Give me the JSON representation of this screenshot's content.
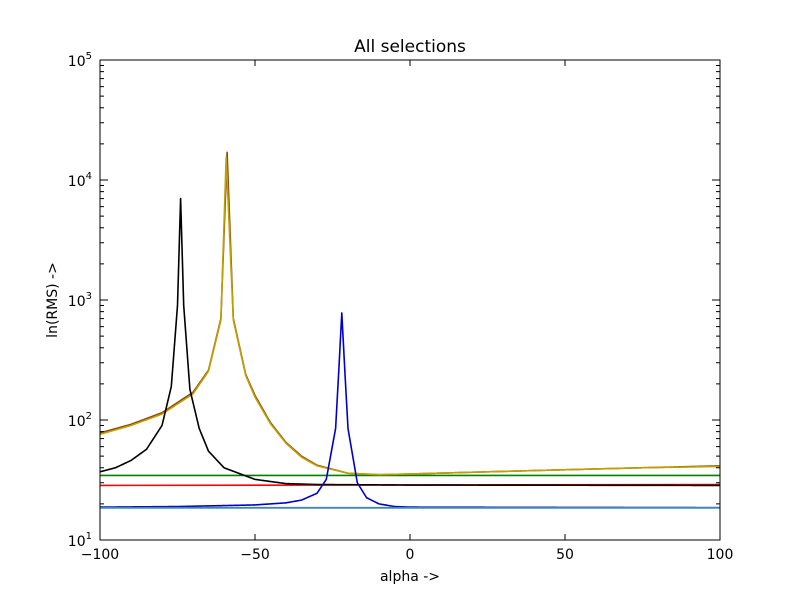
{
  "chart_data": {
    "type": "line",
    "title": "All selections",
    "xlabel": "alpha ->",
    "ylabel": "ln(RMS) ->",
    "xlim": [
      -100,
      100
    ],
    "ylim": [
      10,
      100000
    ],
    "yscale": "log",
    "grid": false,
    "legend": "none",
    "x_ticks": [
      -100,
      -50,
      0,
      50,
      100
    ],
    "x_tick_labels": [
      "−100",
      "−50",
      "0",
      "50",
      "100"
    ],
    "y_ticks": [
      {
        "value": 10,
        "base": "10",
        "exp": "1"
      },
      {
        "value": 100,
        "base": "10",
        "exp": "2"
      },
      {
        "value": 1000,
        "base": "10",
        "exp": "3"
      },
      {
        "value": 10000,
        "base": "10",
        "exp": "4"
      },
      {
        "value": 100000,
        "base": "10",
        "exp": "5"
      }
    ],
    "series": [
      {
        "color": "#20b2aa",
        "kind": "flat",
        "x": [
          -100,
          100
        ],
        "y": [
          18.5,
          18.5
        ]
      },
      {
        "color": "#008000",
        "kind": "flat",
        "x": [
          -100,
          100
        ],
        "y": [
          34.5,
          34.5
        ]
      },
      {
        "color": "#ff0000",
        "kind": "flat",
        "x": [
          -100,
          100
        ],
        "y": [
          28.5,
          29
        ]
      },
      {
        "color": "#8b4513",
        "kind": "peak",
        "center": -59,
        "peak_y": 17000,
        "left_end_y": 78,
        "right_end_y": 41.5,
        "base_y": 30,
        "x": [
          -100,
          -90,
          -80,
          -70,
          -65,
          -61,
          -59,
          -57,
          -53,
          -50,
          -45,
          -40,
          -35,
          -30,
          -20,
          -10,
          0,
          25,
          50,
          75,
          100
        ],
        "y": [
          78,
          92,
          115,
          170,
          260,
          700,
          17000,
          700,
          240,
          160,
          95,
          65,
          50,
          42,
          36,
          35,
          35.5,
          37,
          38.5,
          40,
          41.5
        ]
      },
      {
        "color": "#c0a000",
        "kind": "peak",
        "center": -59.3,
        "peak_y": 15500,
        "left_end_y": 76,
        "right_end_y": 41,
        "base_y": 30,
        "x": [
          -100,
          -90,
          -80,
          -70,
          -65,
          -61,
          -59.3,
          -57,
          -53,
          -50,
          -45,
          -40,
          -35,
          -30,
          -20,
          -10,
          0,
          25,
          50,
          75,
          100
        ],
        "y": [
          76,
          90,
          112,
          165,
          255,
          680,
          15500,
          680,
          235,
          155,
          93,
          64,
          49,
          41.5,
          36,
          35,
          35.5,
          37,
          38.5,
          40,
          41
        ]
      },
      {
        "color": "#000000",
        "kind": "peak",
        "center": -74,
        "peak_y": 7000,
        "left_end_y": 37,
        "right_end_y": 28.5,
        "base_y": 28.5,
        "x": [
          -100,
          -95,
          -90,
          -85,
          -80,
          -77,
          -75,
          -74,
          -73,
          -71,
          -68,
          -65,
          -60,
          -50,
          -40,
          -30,
          0,
          50,
          100
        ],
        "y": [
          37,
          40,
          46,
          57,
          90,
          190,
          900,
          7000,
          900,
          180,
          85,
          55,
          40,
          32,
          29.5,
          29,
          28.7,
          28.6,
          28.5
        ]
      },
      {
        "color": "#0000cd",
        "kind": "peak",
        "center": -22,
        "peak_y": 780,
        "left_end_y": 18.8,
        "right_end_y": 18.6,
        "base_y": 18.6,
        "x": [
          -100,
          -75,
          -50,
          -40,
          -35,
          -30,
          -27,
          -24,
          -23,
          -22,
          -21,
          -20,
          -17,
          -14,
          -10,
          -5,
          0,
          50,
          100
        ],
        "y": [
          18.8,
          19,
          19.6,
          20.4,
          21.5,
          24.5,
          32,
          85,
          250,
          780,
          250,
          85,
          30,
          22.5,
          20,
          19,
          18.8,
          18.7,
          18.6
        ]
      },
      {
        "color": "#4682b4",
        "kind": "flat",
        "x": [
          -100,
          100
        ],
        "y": [
          18.6,
          18.6
        ]
      }
    ]
  }
}
